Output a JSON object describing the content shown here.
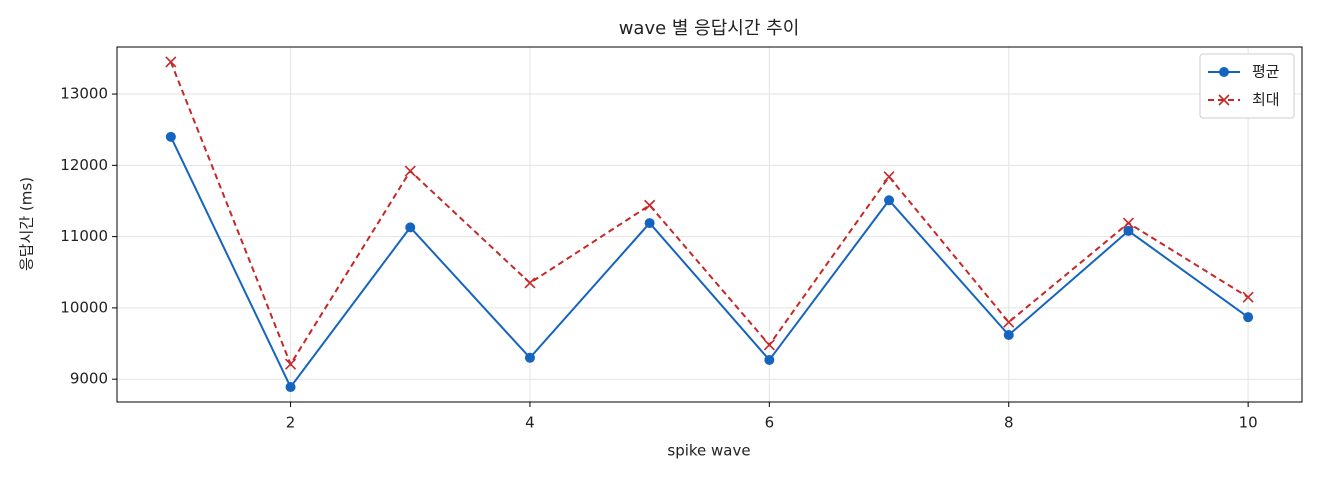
{
  "chart_data": {
    "type": "line",
    "title": "wave 별 응답시간 추이",
    "xlabel": "spike wave",
    "ylabel": "응답시간 (ms)",
    "x": [
      1,
      2,
      3,
      4,
      5,
      6,
      7,
      8,
      9,
      10
    ],
    "series": [
      {
        "name": "평균",
        "color": "#1565c0",
        "marker": "circle",
        "linestyle": "solid",
        "values": [
          12400,
          8890,
          11130,
          9300,
          11190,
          9270,
          11510,
          9620,
          11080,
          9870
        ]
      },
      {
        "name": "최대",
        "color": "#c62828",
        "marker": "x",
        "linestyle": "dashed",
        "values": [
          13450,
          9210,
          11920,
          10350,
          11440,
          9480,
          11840,
          9800,
          11190,
          10150
        ]
      }
    ],
    "xlim": [
      0.55,
      10.45
    ],
    "xticks": [
      2,
      4,
      6,
      8,
      10
    ],
    "ylim": [
      8680,
      13660
    ],
    "yticks": [
      9000,
      10000,
      11000,
      12000,
      13000
    ],
    "grid": true,
    "legend": "upper right"
  }
}
